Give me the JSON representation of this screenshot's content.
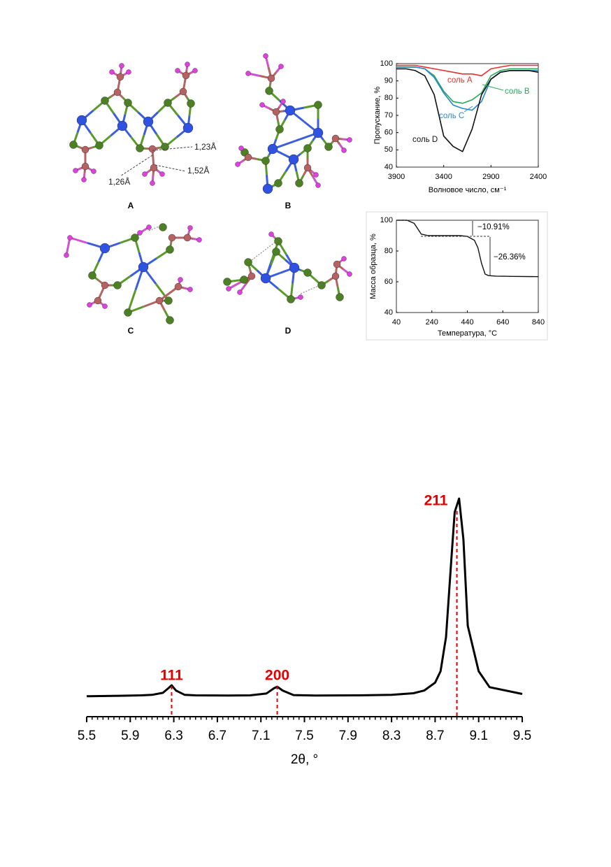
{
  "structures": {
    "labels": [
      "A",
      "B",
      "C",
      "D"
    ],
    "bond_lengths": [
      "1,23Å",
      "1,52Å",
      "1,26Å"
    ]
  },
  "chart_data": [
    {
      "type": "line",
      "xlabel": "Волновое число, см⁻¹",
      "ylabel": "Пропускание, %",
      "x": [
        3900,
        3800,
        3700,
        3600,
        3500,
        3400,
        3300,
        3200,
        3100,
        3000,
        2900,
        2800,
        2700,
        2600,
        2500,
        2400
      ],
      "series": [
        {
          "name": "соль A",
          "color": "#e8302c",
          "values": [
            99,
            99,
            99,
            98,
            97,
            96,
            95,
            94,
            94,
            93,
            97,
            98,
            99,
            99,
            99,
            99
          ]
        },
        {
          "name": "соль B",
          "color": "#27a85a",
          "values": [
            98,
            98,
            98,
            97,
            93,
            84,
            78,
            77,
            79,
            83,
            93,
            96,
            97,
            97,
            97,
            97
          ]
        },
        {
          "name": "соль C",
          "color": "#2a86c8",
          "values": [
            98,
            98,
            98,
            97,
            92,
            83,
            76,
            74,
            73,
            78,
            91,
            95,
            96,
            96,
            96,
            96
          ]
        },
        {
          "name": "соль D",
          "color": "#111111",
          "values": [
            97,
            97,
            96,
            93,
            82,
            58,
            52,
            49,
            62,
            82,
            91,
            95,
            96,
            96,
            96,
            95
          ]
        }
      ],
      "xlim": [
        3900,
        2400
      ],
      "xticks": [
        3900,
        3400,
        2900,
        2400
      ],
      "ylim": [
        40,
        100
      ],
      "yticks": [
        40,
        50,
        60,
        70,
        80,
        90,
        100
      ]
    },
    {
      "type": "line",
      "xlabel": "Температура, °C",
      "ylabel": "Масса образца, %",
      "x": [
        40,
        100,
        140,
        180,
        220,
        300,
        400,
        440,
        480,
        500,
        520,
        540,
        560,
        600,
        700,
        840
      ],
      "values": [
        100,
        100,
        98,
        91,
        90,
        90,
        90,
        89.5,
        87,
        82,
        72,
        65,
        64,
        63.7,
        63.5,
        63.3
      ],
      "color": "#111111",
      "annotations": [
        "−10.91%",
        "−26.36%"
      ],
      "xlim": [
        40,
        840
      ],
      "xticks": [
        40,
        240,
        440,
        640,
        840
      ],
      "ylim": [
        40,
        100
      ],
      "yticks": [
        40,
        60,
        80,
        100
      ]
    },
    {
      "type": "line",
      "xlabel": "2θ, °",
      "x": [
        5.5,
        5.8,
        6.0,
        6.1,
        6.2,
        6.25,
        6.28,
        6.32,
        6.4,
        6.5,
        6.8,
        7.0,
        7.15,
        7.22,
        7.25,
        7.3,
        7.4,
        7.6,
        8.0,
        8.3,
        8.5,
        8.6,
        8.7,
        8.75,
        8.8,
        8.85,
        8.88,
        8.92,
        8.96,
        9.0,
        9.1,
        9.2,
        9.5
      ],
      "values": [
        9,
        9.2,
        9.4,
        9.6,
        10.5,
        12.5,
        13.8,
        11.5,
        9.6,
        9.4,
        9.3,
        9.4,
        10.2,
        12.5,
        13.2,
        11.5,
        9.5,
        9.3,
        9.4,
        9.6,
        10.3,
        11.5,
        15,
        20,
        35,
        70,
        90,
        96,
        78,
        40,
        20,
        13,
        10
      ],
      "color": "#000000",
      "peaks": [
        {
          "label": "111",
          "x": 6.28
        },
        {
          "label": "200",
          "x": 7.25
        },
        {
          "label": "211",
          "x": 8.9
        }
      ],
      "peak_color": "#e00000",
      "xlim": [
        5.5,
        9.5
      ],
      "xticks": [
        5.5,
        5.9,
        6.3,
        6.7,
        7.1,
        7.5,
        7.9,
        8.3,
        8.7,
        9.1,
        9.5
      ],
      "ylim": [
        0,
        100
      ]
    }
  ]
}
